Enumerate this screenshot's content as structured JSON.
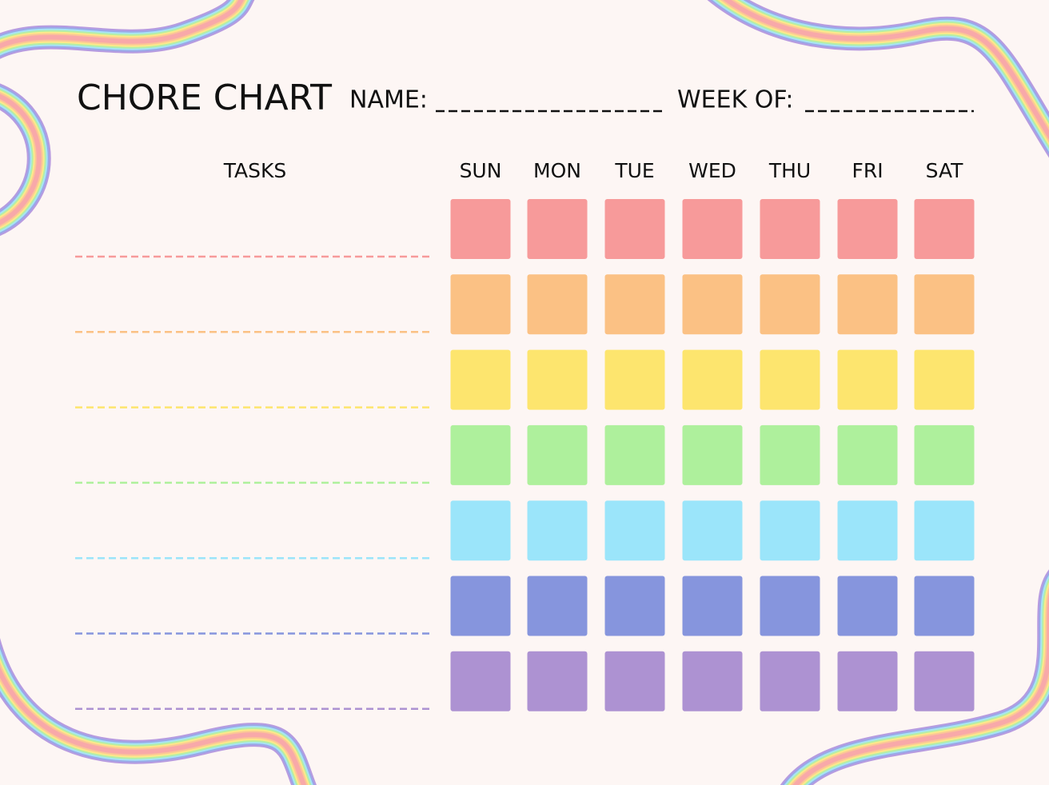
{
  "header": {
    "title": "CHORE CHART",
    "name_label": "NAME:",
    "week_label": "WEEK OF:"
  },
  "table": {
    "tasks_header": "TASKS",
    "days": [
      "SUN",
      "MON",
      "TUE",
      "WED",
      "THU",
      "FRI",
      "SAT"
    ]
  }
}
